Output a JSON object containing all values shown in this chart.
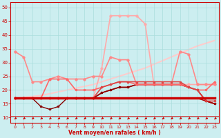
{
  "background_color": "#cceef0",
  "grid_color": "#aadddd",
  "xlabel": "Vent moyen/en rafales ( km/h )",
  "xlabel_color": "#cc0000",
  "xlim": [
    -0.5,
    23.5
  ],
  "ylim": [
    8,
    52
  ],
  "yticks": [
    10,
    15,
    20,
    25,
    30,
    35,
    40,
    45,
    50
  ],
  "xticks": [
    0,
    1,
    2,
    3,
    4,
    5,
    6,
    7,
    8,
    9,
    10,
    11,
    12,
    13,
    14,
    15,
    16,
    17,
    18,
    19,
    20,
    21,
    22,
    23
  ],
  "series": [
    {
      "x": [
        0,
        1,
        2,
        3,
        4,
        5,
        6,
        7,
        8,
        9,
        10,
        11,
        12,
        13,
        14,
        15,
        16,
        17,
        18,
        19,
        20,
        21,
        22,
        23
      ],
      "y": [
        17,
        17,
        17,
        17,
        17,
        17,
        17,
        17,
        17,
        17,
        17,
        17,
        17,
        17,
        17,
        17,
        17,
        17,
        17,
        17,
        17,
        17,
        17,
        17
      ],
      "color": "#cc0000",
      "linewidth": 2.5,
      "marker": null,
      "markersize": 0,
      "zorder": 4
    },
    {
      "x": [
        0,
        1,
        2,
        3,
        4,
        5,
        6,
        7,
        8,
        9,
        10,
        11,
        12,
        13,
        14,
        15,
        16,
        17,
        18,
        19,
        20,
        21,
        22,
        23
      ],
      "y": [
        17,
        17,
        17,
        17,
        17,
        17,
        17,
        17,
        17,
        17,
        19,
        20,
        21,
        21,
        22,
        22,
        22,
        22,
        22,
        22,
        21,
        20,
        16,
        15
      ],
      "color": "#cc0000",
      "linewidth": 1.2,
      "marker": "o",
      "markersize": 2.0,
      "zorder": 3
    },
    {
      "x": [
        0,
        1,
        2,
        3,
        4,
        5,
        6,
        7,
        8,
        9,
        10,
        11,
        12,
        13,
        14,
        15,
        16,
        17,
        18,
        19,
        20,
        21,
        22,
        23
      ],
      "y": [
        17,
        17,
        17,
        14,
        13,
        14,
        17,
        17,
        17,
        17,
        19,
        20,
        21,
        21,
        22,
        22,
        22,
        22,
        22,
        22,
        21,
        20,
        16,
        15
      ],
      "color": "#880000",
      "linewidth": 1.0,
      "marker": "o",
      "markersize": 2.0,
      "zorder": 3
    },
    {
      "x": [
        0,
        1,
        2,
        3,
        4,
        5,
        6,
        7,
        8,
        9,
        10,
        11,
        12,
        13,
        14,
        15,
        16,
        17,
        18,
        19,
        20,
        21,
        22,
        23
      ],
      "y": [
        17,
        17,
        17,
        17,
        17,
        17,
        17,
        17,
        17,
        17,
        17,
        17,
        17,
        17,
        17,
        17,
        17,
        17,
        17,
        17,
        17,
        17,
        16,
        15
      ],
      "color": "#aa0000",
      "linewidth": 1.0,
      "marker": "o",
      "markersize": 1.5,
      "zorder": 3
    },
    {
      "x": [
        0,
        1,
        2,
        3,
        4,
        5,
        6,
        7,
        8,
        9,
        10,
        11,
        12,
        13,
        14,
        15,
        16,
        17,
        18,
        19,
        20,
        21,
        22,
        23
      ],
      "y": [
        17,
        17,
        17,
        17,
        17,
        17,
        17,
        17,
        17,
        17,
        28,
        47,
        47,
        47,
        47,
        44,
        22,
        22,
        22,
        22,
        22,
        22,
        22,
        22
      ],
      "color": "#ffaaaa",
      "linewidth": 1.2,
      "marker": "o",
      "markersize": 2.5,
      "zorder": 2
    },
    {
      "x": [
        0,
        1,
        2,
        3,
        4,
        5,
        6,
        7,
        8,
        9,
        10,
        11,
        12,
        13,
        14,
        15,
        16,
        17,
        18,
        19,
        20,
        21,
        22,
        23
      ],
      "y": [
        34,
        32,
        23,
        23,
        24,
        25,
        24,
        24,
        24,
        25,
        25,
        32,
        31,
        31,
        22,
        22,
        22,
        22,
        22,
        34,
        33,
        22,
        22,
        22
      ],
      "color": "#ff8888",
      "linewidth": 1.2,
      "marker": "o",
      "markersize": 2.5,
      "zorder": 2
    },
    {
      "x": [
        0,
        3,
        6,
        9,
        12,
        15,
        18,
        21,
        23
      ],
      "y": [
        17,
        18,
        20,
        22,
        25,
        28,
        32,
        36,
        38
      ],
      "color": "#ffcccc",
      "linewidth": 1.5,
      "marker": null,
      "markersize": 0,
      "zorder": 1
    },
    {
      "x": [
        0,
        1,
        2,
        3,
        4,
        5,
        6,
        7,
        8,
        9,
        10,
        11,
        12,
        13,
        14,
        15,
        16,
        17,
        18,
        19,
        20,
        21,
        22,
        23
      ],
      "y": [
        17,
        17,
        17,
        17,
        24,
        24,
        24,
        20,
        20,
        20,
        21,
        22,
        23,
        23,
        22,
        22,
        22,
        22,
        22,
        22,
        21,
        20,
        20,
        23
      ],
      "color": "#ff6666",
      "linewidth": 1.2,
      "marker": "o",
      "markersize": 2.0,
      "zorder": 3
    },
    {
      "x": [
        0,
        1,
        2,
        3,
        4,
        5,
        6,
        7,
        8,
        9,
        10,
        11,
        12,
        13,
        14,
        15,
        16,
        17,
        18,
        19,
        20,
        21,
        22,
        23
      ],
      "y": [
        17,
        17,
        17,
        17,
        17,
        17,
        17,
        17,
        17,
        17,
        21,
        22,
        23,
        23,
        23,
        23,
        23,
        23,
        23,
        23,
        21,
        20,
        16,
        16
      ],
      "color": "#dd4444",
      "linewidth": 1.2,
      "marker": "o",
      "markersize": 2.0,
      "zorder": 3
    }
  ]
}
